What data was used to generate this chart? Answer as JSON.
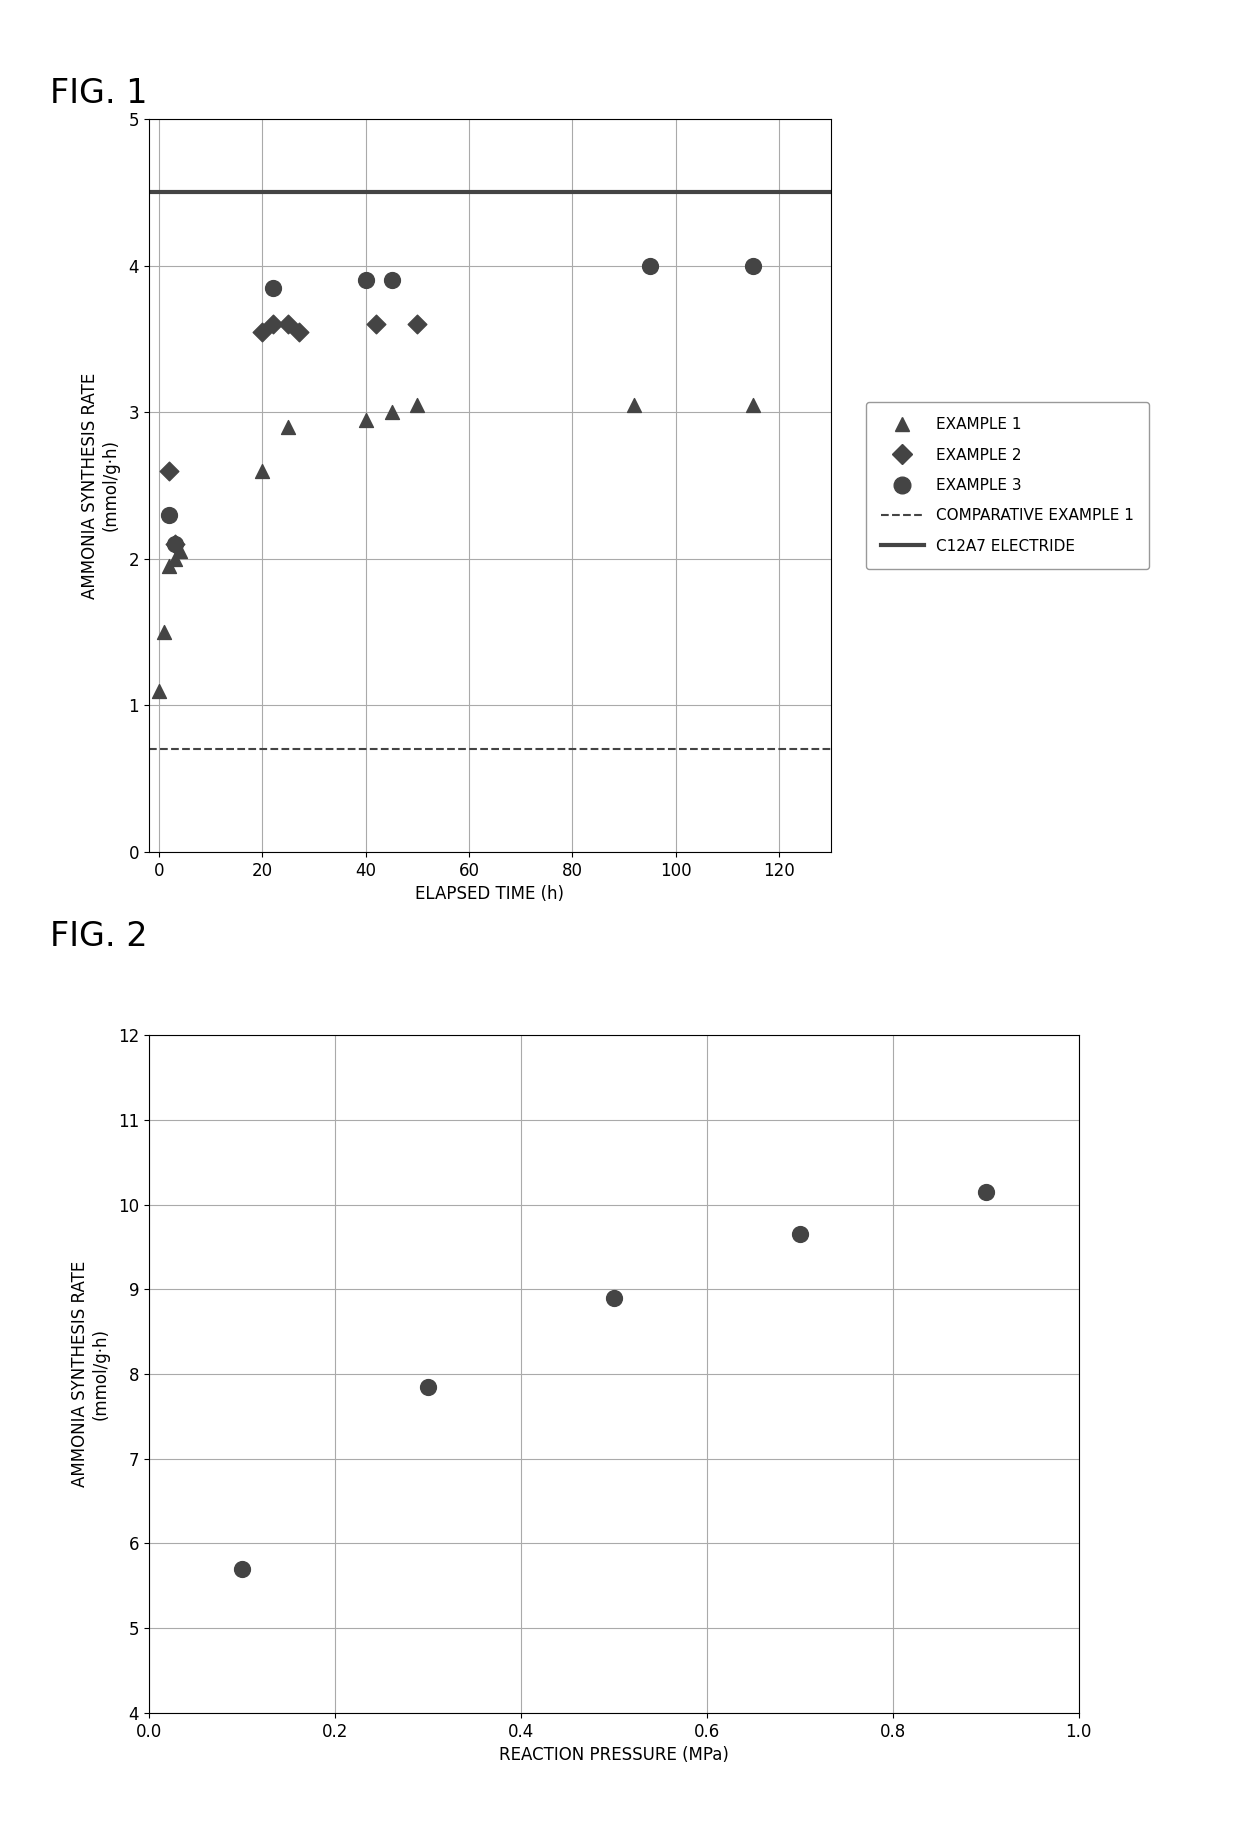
{
  "fig1": {
    "title": "FIG. 1",
    "xlabel": "ELAPSED TIME (h)",
    "ylabel": "AMMONIA SYNTHESIS RATE\n(mmol/g·h)",
    "xlim": [
      -2,
      130
    ],
    "ylim": [
      0,
      5
    ],
    "xticks": [
      0,
      20,
      40,
      60,
      80,
      100,
      120
    ],
    "yticks": [
      0,
      1,
      2,
      3,
      4,
      5
    ],
    "example1_x": [
      0,
      1,
      2,
      3,
      4,
      20,
      25,
      40,
      45,
      50,
      92,
      115
    ],
    "example1_y": [
      1.1,
      1.5,
      1.95,
      2.0,
      2.05,
      2.6,
      2.9,
      2.95,
      3.0,
      3.05,
      3.05,
      3.05
    ],
    "example2_x": [
      2,
      3,
      20,
      22,
      25,
      27,
      42,
      50
    ],
    "example2_y": [
      2.6,
      2.1,
      3.55,
      3.6,
      3.6,
      3.55,
      3.6,
      3.6
    ],
    "example3_x": [
      2,
      3,
      22,
      40,
      45,
      95,
      115
    ],
    "example3_y": [
      2.3,
      2.1,
      3.85,
      3.9,
      3.9,
      4.0,
      4.0
    ],
    "comp_example1_y": 0.7,
    "c12a7_electride_y": 4.5,
    "marker_color": "#444444",
    "comp_line_color": "#444444",
    "c12a7_line_color": "#444444"
  },
  "fig2": {
    "title": "FIG. 2",
    "xlabel": "REACTION PRESSURE (MPa)",
    "ylabel": "AMMONIA SYNTHESIS RATE\n(mmol/g·h)",
    "xlim": [
      0.0,
      1.0
    ],
    "ylim": [
      4,
      12
    ],
    "xticks": [
      0.0,
      0.2,
      0.4,
      0.6,
      0.8,
      1.0
    ],
    "yticks": [
      4,
      5,
      6,
      7,
      8,
      9,
      10,
      11,
      12
    ],
    "x": [
      0.1,
      0.3,
      0.5,
      0.7,
      0.9
    ],
    "y": [
      5.7,
      7.85,
      8.9,
      9.65,
      10.15
    ],
    "marker_color": "#444444"
  },
  "background_color": "#ffffff",
  "grid_color": "#aaaaaa",
  "title_fontsize": 24,
  "label_fontsize": 12,
  "tick_fontsize": 12,
  "legend_fontsize": 11
}
